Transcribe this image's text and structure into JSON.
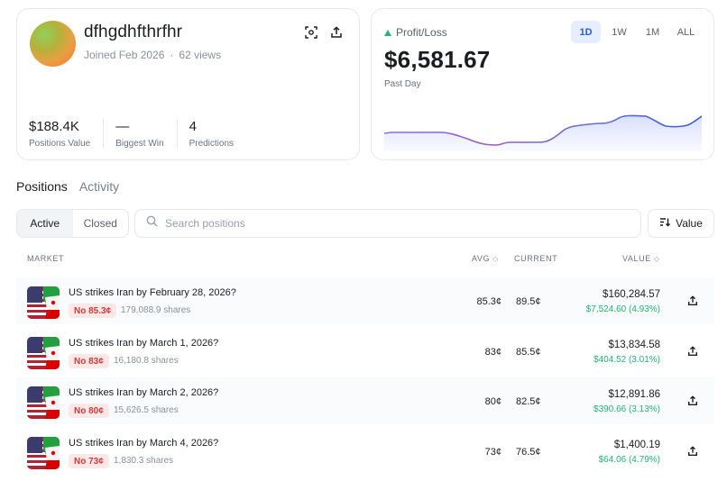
{
  "profile": {
    "username": "dfhgdhfthrfhr",
    "joined": "Joined Feb 2026",
    "views": "62 views",
    "stats": [
      {
        "value": "$188.4K",
        "label": "Positions Value"
      },
      {
        "value": "—",
        "label": "Biggest Win"
      },
      {
        "value": "4",
        "label": "Predictions"
      }
    ]
  },
  "pnl": {
    "label": "Profit/Loss",
    "value": "$6,581.67",
    "period": "Past Day",
    "ranges": [
      "1D",
      "1W",
      "1M",
      "ALL"
    ],
    "active_range": "1D",
    "line_color": "#3b5bdb"
  },
  "tabs": {
    "positions": "Positions",
    "activity": "Activity"
  },
  "filter": {
    "active": "Active",
    "closed": "Closed"
  },
  "search": {
    "placeholder": "Search positions"
  },
  "sort": {
    "label": "Value"
  },
  "table": {
    "headers": {
      "market": "MARKET",
      "avg": "AVG",
      "current": "CURRENT",
      "value": "VALUE"
    },
    "rows": [
      {
        "title": "US strikes Iran by February 28, 2026?",
        "outcome": "No 85.3¢",
        "shares": "179,088.9 shares",
        "avg": "85.3¢",
        "current": "89.5¢",
        "value": "$160,284.57",
        "change": "$7,524.60 (4.93%)"
      },
      {
        "title": "US strikes Iran by March 1, 2026?",
        "outcome": "No 83¢",
        "shares": "16,180.8 shares",
        "avg": "83¢",
        "current": "85.5¢",
        "value": "$13,834.58",
        "change": "$404.52 (3.01%)"
      },
      {
        "title": "US strikes Iran by March 2, 2026?",
        "outcome": "No 80¢",
        "shares": "15,626.5 shares",
        "avg": "80¢",
        "current": "82.5¢",
        "value": "$12,891.86",
        "change": "$390.66 (3.13%)"
      },
      {
        "title": "US strikes Iran by March 4, 2026?",
        "outcome": "No 73¢",
        "shares": "1,830.3 shares",
        "avg": "73¢",
        "current": "76.5¢",
        "value": "$1,400.19",
        "change": "$64.06 (4.79%)"
      }
    ]
  }
}
